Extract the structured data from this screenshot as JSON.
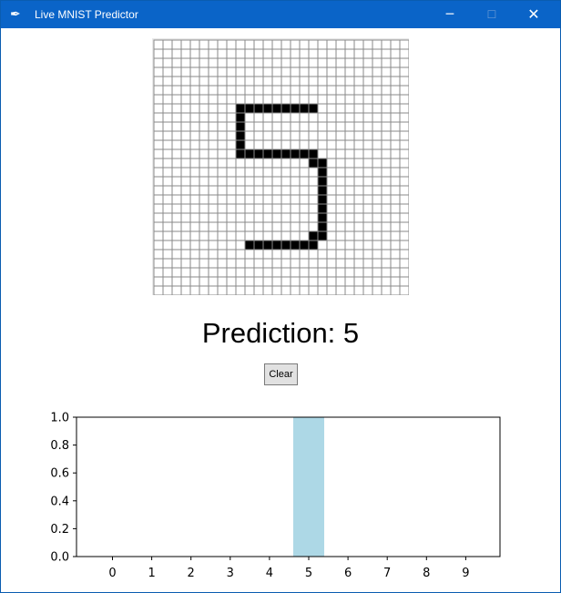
{
  "window": {
    "title": "Live MNIST Predictor",
    "app_icon": "feather-icon",
    "minimize_icon": "minimize-icon",
    "maximize_icon": "maximize-icon",
    "close_icon": "close-icon"
  },
  "canvas": {
    "grid_size": 28,
    "filled_cells": [
      [
        7,
        9
      ],
      [
        7,
        10
      ],
      [
        7,
        11
      ],
      [
        7,
        12
      ],
      [
        7,
        13
      ],
      [
        7,
        14
      ],
      [
        7,
        15
      ],
      [
        7,
        16
      ],
      [
        7,
        17
      ],
      [
        8,
        9
      ],
      [
        9,
        9
      ],
      [
        10,
        9
      ],
      [
        11,
        9
      ],
      [
        12,
        9
      ],
      [
        12,
        10
      ],
      [
        12,
        11
      ],
      [
        12,
        12
      ],
      [
        12,
        13
      ],
      [
        12,
        14
      ],
      [
        12,
        15
      ],
      [
        12,
        16
      ],
      [
        12,
        17
      ],
      [
        13,
        17
      ],
      [
        13,
        18
      ],
      [
        14,
        18
      ],
      [
        15,
        18
      ],
      [
        16,
        18
      ],
      [
        17,
        18
      ],
      [
        18,
        18
      ],
      [
        19,
        18
      ],
      [
        20,
        18
      ],
      [
        21,
        17
      ],
      [
        21,
        18
      ],
      [
        22,
        10
      ],
      [
        22,
        11
      ],
      [
        22,
        12
      ],
      [
        22,
        13
      ],
      [
        22,
        14
      ],
      [
        22,
        15
      ],
      [
        22,
        16
      ],
      [
        22,
        17
      ]
    ]
  },
  "prediction_text": "Prediction: 5",
  "clear_button": {
    "label": "Clear"
  },
  "chart_data": {
    "type": "bar",
    "categories": [
      "0",
      "1",
      "2",
      "3",
      "4",
      "5",
      "6",
      "7",
      "8",
      "9"
    ],
    "values": [
      0,
      0,
      0,
      0,
      0,
      1.0,
      0,
      0,
      0,
      0
    ],
    "xlabel": "",
    "ylabel": "",
    "ylim": [
      0,
      1.0
    ],
    "yticks": [
      "0.0",
      "0.2",
      "0.4",
      "0.6",
      "0.8",
      "1.0"
    ],
    "bar_color": "#add8e6",
    "grid": false
  }
}
